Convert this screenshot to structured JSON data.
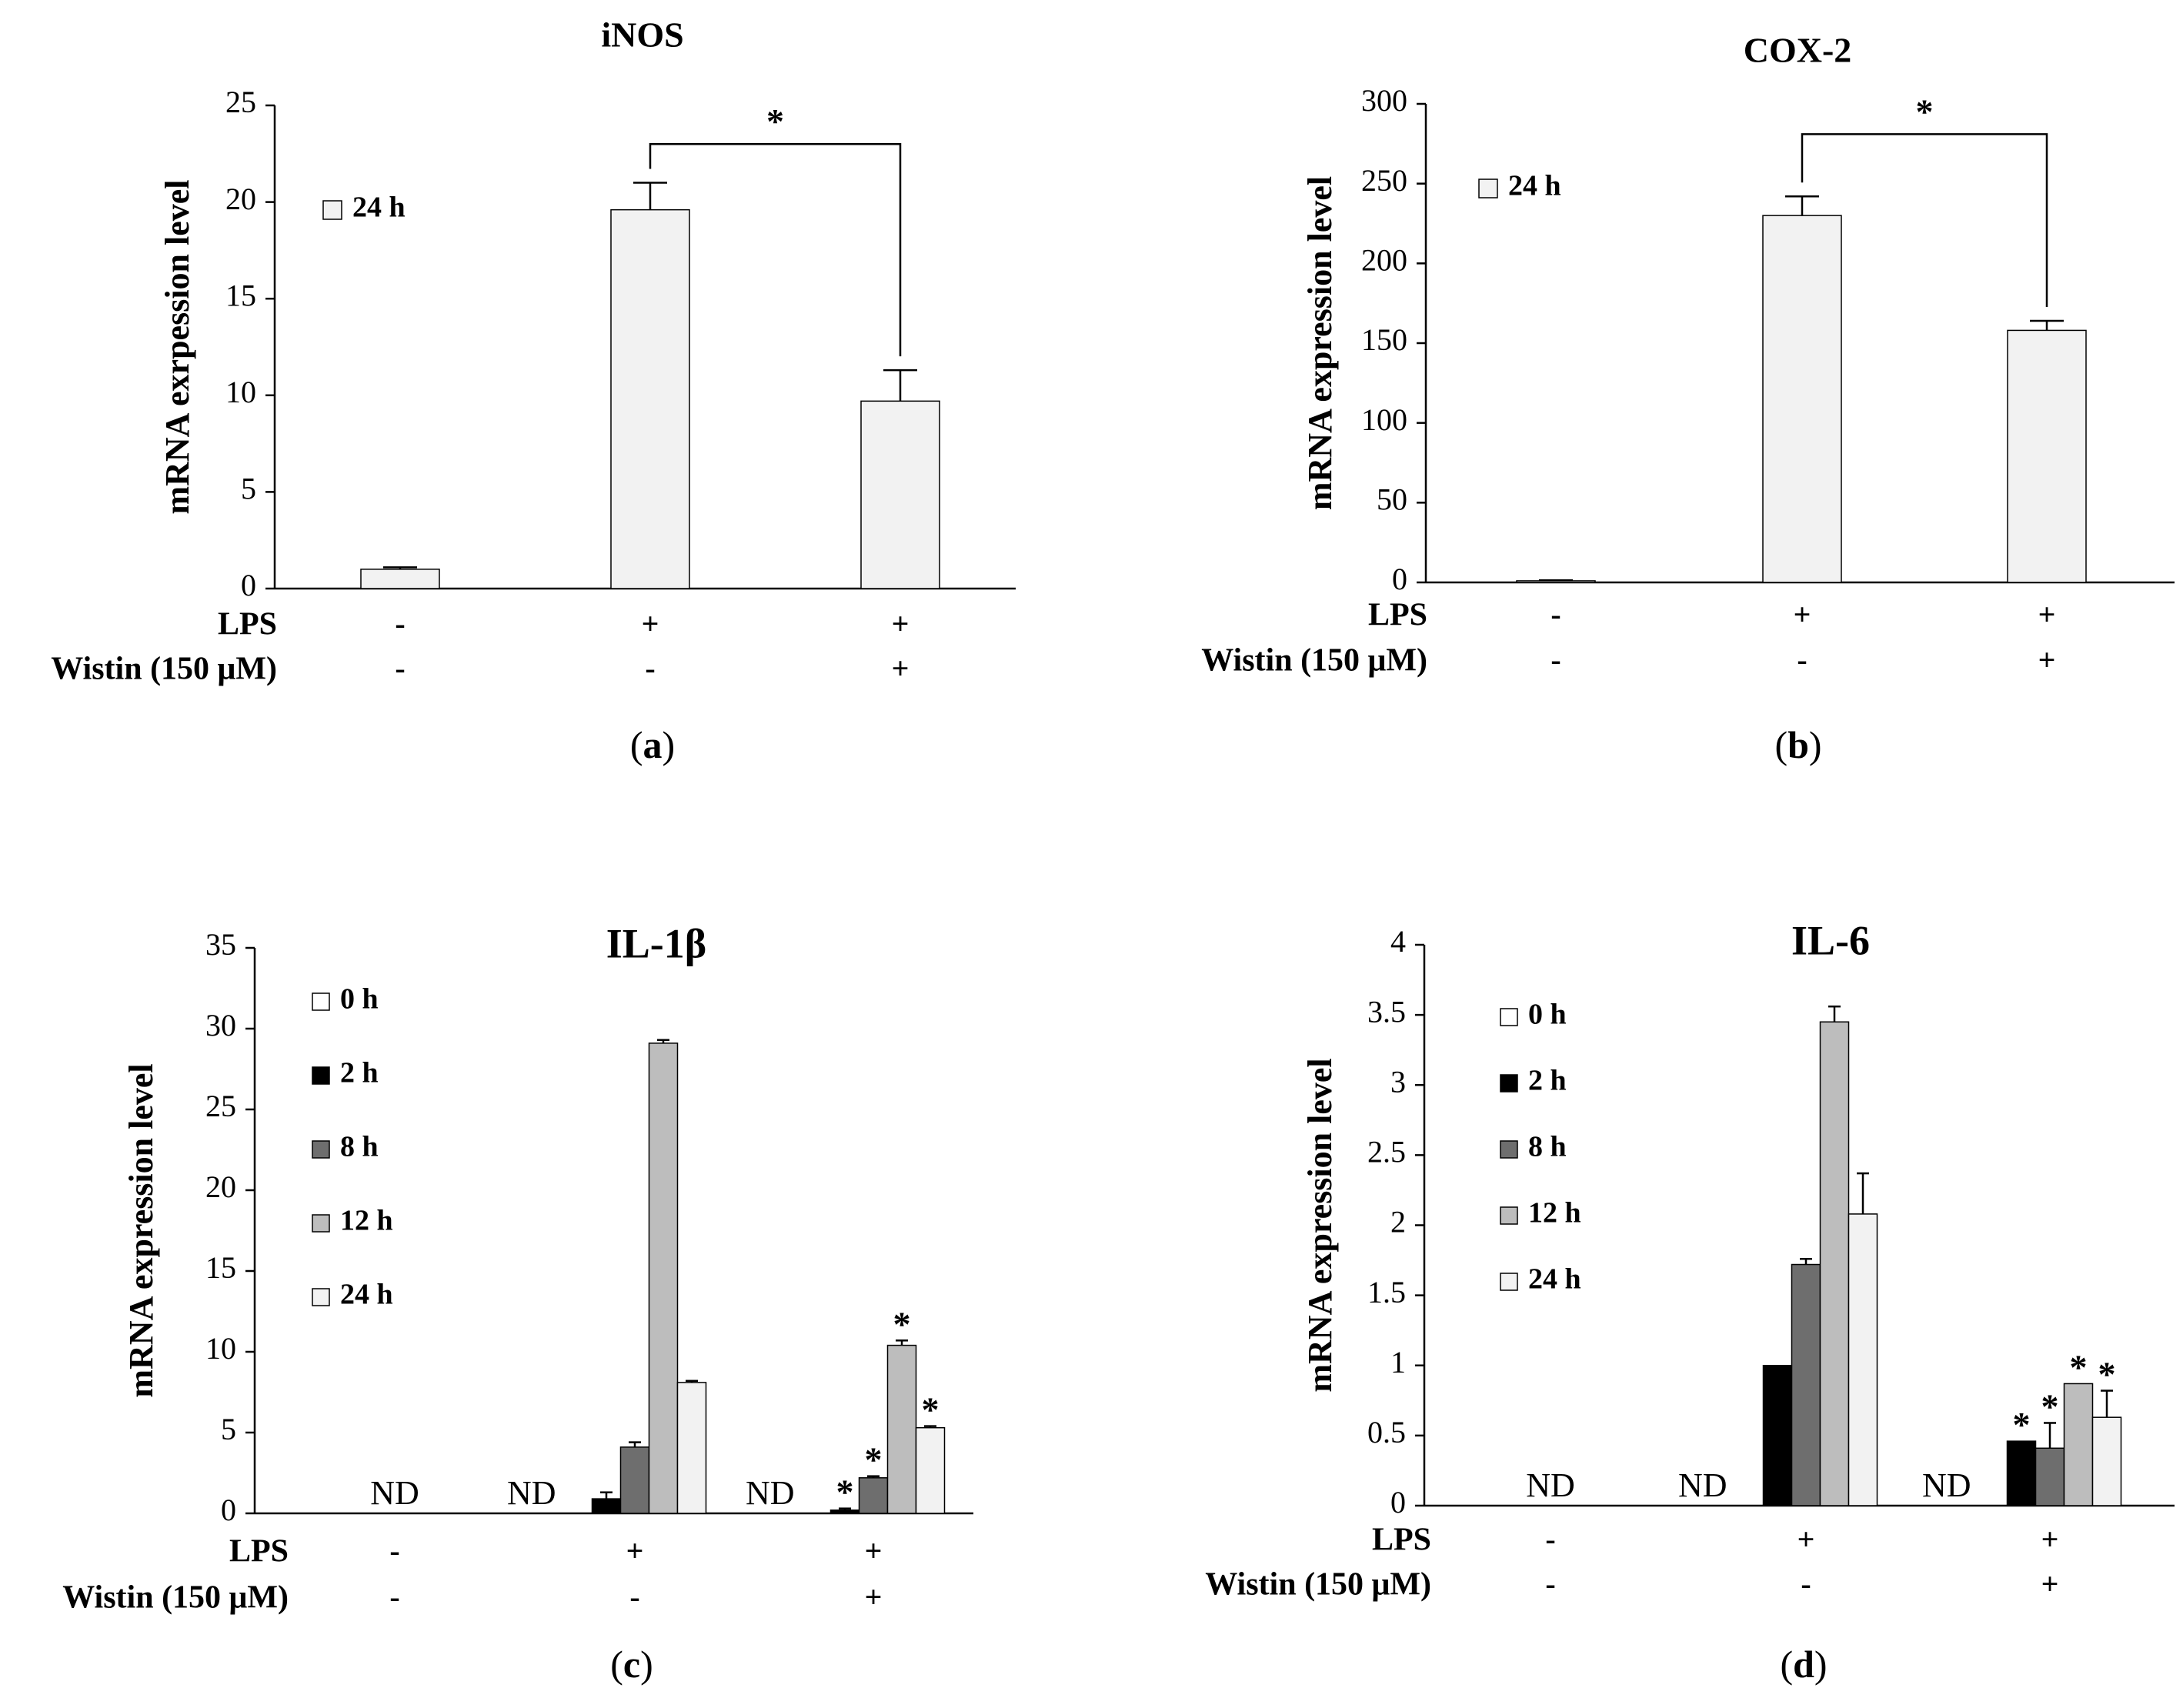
{
  "figure": {
    "colors": {
      "h0": "#ffffff",
      "h2": "#000000",
      "h8": "#6e6e6e",
      "h12": "#bdbdbd",
      "h24": "#f2f2f2",
      "axis": "#000000"
    },
    "row_labels": [
      "LPS",
      "Wistin (150 μM)"
    ],
    "not_detected": "ND"
  },
  "chart_data": [
    {
      "type": "bar",
      "title": "iNOS",
      "panel": "a",
      "ylabel": "mRNA exrpession level",
      "ylim": [
        0,
        25
      ],
      "yticks": [
        0,
        5,
        10,
        15,
        20,
        25
      ],
      "yticklabels": [
        "0",
        "5",
        "10",
        "15",
        "20",
        "25"
      ],
      "categories": [
        "ctrl",
        "lps",
        "lps_wistin"
      ],
      "treatment_signs": {
        "LPS": [
          "-",
          "+",
          "+"
        ],
        "Wistin (150 μM)": [
          "-",
          "-",
          "+"
        ]
      },
      "legend": [
        {
          "key": "h24",
          "label": "24 h"
        }
      ],
      "series": [
        {
          "key": "h24",
          "name": "24 h",
          "values": [
            1.0,
            19.6,
            9.7
          ],
          "errors": [
            0.1,
            1.4,
            1.6
          ]
        }
      ],
      "significance_bracket": {
        "from": 1,
        "to": 2,
        "label": "*",
        "y": 23.0
      },
      "markers": [],
      "nd": []
    },
    {
      "type": "bar",
      "title": "COX-2",
      "panel": "b",
      "ylabel": "mRNA expression level",
      "ylim": [
        0,
        300
      ],
      "yticks": [
        0,
        50,
        100,
        150,
        200,
        250,
        300
      ],
      "yticklabels": [
        "0",
        "50",
        "100",
        "150",
        "200",
        "250",
        "300"
      ],
      "categories": [
        "ctrl",
        "lps",
        "lps_wistin"
      ],
      "treatment_signs": {
        "LPS": [
          "-",
          "+",
          "+"
        ],
        "Wistin (150 μM)": [
          "-",
          "-",
          "+"
        ]
      },
      "legend": [
        {
          "key": "h24",
          "label": "24 h"
        }
      ],
      "series": [
        {
          "key": "h24",
          "name": "24 h",
          "values": [
            1.0,
            230.0,
            158.0
          ],
          "errors": [
            0.3,
            12.0,
            6.0
          ]
        }
      ],
      "significance_bracket": {
        "from": 1,
        "to": 2,
        "label": "*",
        "y": 281.0
      },
      "markers": [],
      "nd": []
    },
    {
      "type": "bar",
      "title": "IL-1β",
      "panel": "c",
      "ylabel": "mRNA expression level",
      "ylim": [
        0,
        35
      ],
      "yticks": [
        0,
        5,
        10,
        15,
        20,
        25,
        30,
        35
      ],
      "yticklabels": [
        "0",
        "5",
        "10",
        "15",
        "20",
        "25",
        "30",
        "35"
      ],
      "categories": [
        "ctrl",
        "lps",
        "lps_wistin"
      ],
      "treatment_signs": {
        "LPS": [
          "-",
          "+",
          "+"
        ],
        "Wistin (150 μM)": [
          "-",
          "-",
          "+"
        ]
      },
      "legend": [
        {
          "key": "h0",
          "label": "0 h"
        },
        {
          "key": "h2",
          "label": "2 h"
        },
        {
          "key": "h8",
          "label": "8 h"
        },
        {
          "key": "h12",
          "label": "12 h"
        },
        {
          "key": "h24",
          "label": "24 h"
        }
      ],
      "series": [
        {
          "key": "h0",
          "name": "0 h",
          "values": [
            0,
            0,
            0
          ],
          "errors": [
            0,
            0,
            0
          ]
        },
        {
          "key": "h2",
          "name": "2 h",
          "values": [
            0,
            0.9,
            0.2
          ],
          "errors": [
            0,
            0.4,
            0.1
          ]
        },
        {
          "key": "h8",
          "name": "8 h",
          "values": [
            0,
            4.1,
            2.2
          ],
          "errors": [
            0,
            0.3,
            0.1
          ]
        },
        {
          "key": "h12",
          "name": "12 h",
          "values": [
            0,
            29.1,
            10.4
          ],
          "errors": [
            0,
            0.2,
            0.3
          ]
        },
        {
          "key": "h24",
          "name": "24 h",
          "values": [
            0,
            8.1,
            5.3
          ],
          "errors": [
            0,
            0.1,
            0.1
          ]
        }
      ],
      "markers": [
        {
          "cat": 2,
          "key": "h2",
          "label": "*"
        },
        {
          "cat": 2,
          "key": "h8",
          "label": "*"
        },
        {
          "cat": 2,
          "key": "h12",
          "label": "*"
        },
        {
          "cat": 2,
          "key": "h24",
          "label": "*"
        }
      ],
      "nd": [
        0,
        1,
        2
      ]
    },
    {
      "type": "bar",
      "title": "IL-6",
      "panel": "d",
      "ylabel": "mRNA expression level",
      "ylim": [
        0,
        4
      ],
      "yticks": [
        0,
        0.5,
        1,
        1.5,
        2,
        2.5,
        3,
        3.5,
        4
      ],
      "yticklabels": [
        "0",
        "0.5",
        "1",
        "1.5",
        "2",
        "2.5",
        "3",
        "3.5",
        "4"
      ],
      "categories": [
        "ctrl",
        "lps",
        "lps_wistin"
      ],
      "treatment_signs": {
        "LPS": [
          "-",
          "+",
          "+"
        ],
        "Wistin (150 μM)": [
          "-",
          "-",
          "+"
        ]
      },
      "legend": [
        {
          "key": "h0",
          "label": "0 h"
        },
        {
          "key": "h2",
          "label": "2 h"
        },
        {
          "key": "h8",
          "label": "8 h"
        },
        {
          "key": "h12",
          "label": "12 h"
        },
        {
          "key": "h24",
          "label": "24 h"
        }
      ],
      "series": [
        {
          "key": "h0",
          "name": "0 h",
          "values": [
            0,
            0,
            0
          ],
          "errors": [
            0,
            0,
            0
          ]
        },
        {
          "key": "h2",
          "name": "2 h",
          "values": [
            0,
            1.0,
            0.46
          ],
          "errors": [
            0,
            0,
            0
          ]
        },
        {
          "key": "h8",
          "name": "8 h",
          "values": [
            0,
            1.72,
            0.41
          ],
          "errors": [
            0,
            0.04,
            0.18
          ]
        },
        {
          "key": "h12",
          "name": "12 h",
          "values": [
            0,
            3.45,
            0.87
          ],
          "errors": [
            0,
            0.11,
            0
          ]
        },
        {
          "key": "h24",
          "name": "24 h",
          "values": [
            0,
            2.08,
            0.63
          ],
          "errors": [
            0,
            0.29,
            0.19
          ]
        }
      ],
      "markers": [
        {
          "cat": 2,
          "key": "h2",
          "label": "*"
        },
        {
          "cat": 2,
          "key": "h8",
          "label": "*"
        },
        {
          "cat": 2,
          "key": "h12",
          "label": "*"
        },
        {
          "cat": 2,
          "key": "h24",
          "label": "*"
        }
      ],
      "nd": [
        0,
        1,
        2
      ]
    }
  ]
}
